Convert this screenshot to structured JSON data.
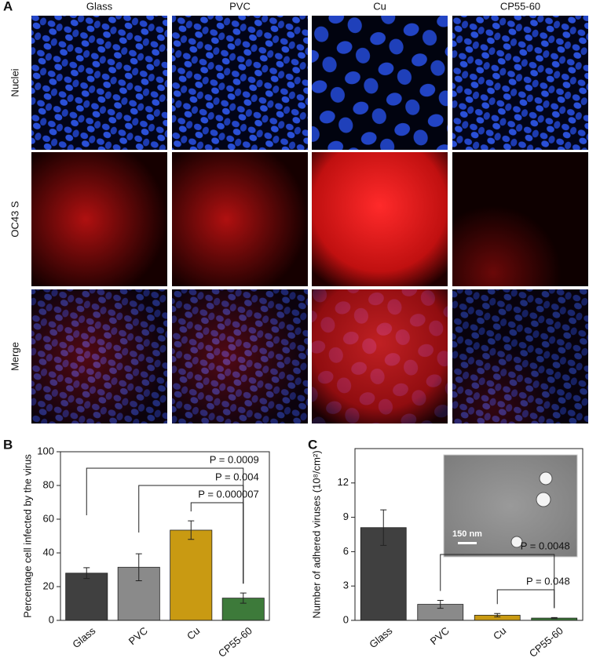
{
  "panel_a": {
    "label": "A",
    "columns": [
      "Glass",
      "PVC",
      "Cu",
      "CP55-60"
    ],
    "rows": [
      "Nuclei",
      "OC43 S",
      "Merge"
    ]
  },
  "chart_data": [
    {
      "type": "bar",
      "panel_label": "B",
      "ylabel": "Percentage cell infected by the virus",
      "categories": [
        "Glass",
        "PVC",
        "Cu",
        "CP55-60"
      ],
      "values": [
        28,
        31.5,
        53.5,
        13.2
      ],
      "errors": [
        3.2,
        8,
        5.5,
        3
      ],
      "colors": [
        "#404040",
        "#8a8a8a",
        "#c99a12",
        "#3d7a3a"
      ],
      "ylim": [
        0,
        100
      ],
      "yticks": [
        0,
        20,
        40,
        60,
        80,
        100
      ],
      "comparisons": [
        {
          "from": 0,
          "to": 3,
          "text": "P = 0.0009"
        },
        {
          "from": 1,
          "to": 3,
          "text": "P = 0.004"
        },
        {
          "from": 2,
          "to": 3,
          "text": "P = 0.000007"
        }
      ]
    },
    {
      "type": "bar",
      "panel_label": "C",
      "ylabel": "Number of adhered viruses (10⁸/cm²)",
      "categories": [
        "Glass",
        "PVC",
        "Cu",
        "CP55-60"
      ],
      "values": [
        8.1,
        1.4,
        0.45,
        0.2
      ],
      "errors": [
        1.55,
        0.35,
        0.15,
        0.05
      ],
      "colors": [
        "#404040",
        "#8a8a8a",
        "#c99a12",
        "#3d7a3a"
      ],
      "ylim": [
        0,
        15
      ],
      "yticks": [
        0,
        3,
        6,
        9,
        12
      ],
      "comparisons": [
        {
          "from": 1,
          "to": 3,
          "text": "P = 0.0048"
        },
        {
          "from": 2,
          "to": 3,
          "text": "P = 0.048"
        }
      ],
      "inset_scale_label": "150 nm"
    }
  ]
}
